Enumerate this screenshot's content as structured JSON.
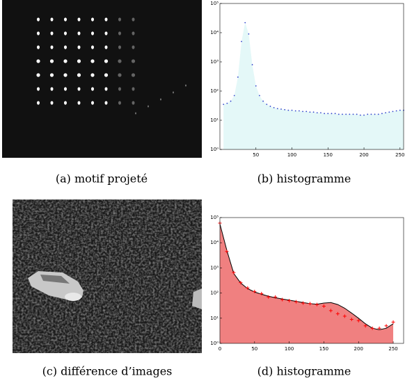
{
  "captions": [
    "(a) motif projeté",
    "(b) histogramme",
    "(c) différence d’images",
    "(d) histogramme"
  ],
  "chart_data": [
    {
      "type": "scatter",
      "log_y": true,
      "x": [
        5,
        10,
        15,
        20,
        25,
        30,
        35,
        40,
        45,
        50,
        55,
        60,
        65,
        70,
        75,
        80,
        85,
        90,
        95,
        100,
        105,
        110,
        115,
        120,
        125,
        130,
        135,
        140,
        145,
        150,
        155,
        160,
        165,
        170,
        175,
        180,
        185,
        190,
        195,
        200,
        205,
        210,
        215,
        220,
        225,
        230,
        235,
        240,
        245,
        250,
        255
      ],
      "series": [
        {
          "color": "#3344cc",
          "fill_color": "#e4f8f8",
          "marker": "dot",
          "values": [
            35,
            38,
            45,
            70,
            300,
            5000,
            22000,
            9000,
            800,
            150,
            70,
            45,
            35,
            30,
            27,
            25,
            24,
            23,
            22,
            22,
            21,
            21,
            20,
            20,
            19,
            19,
            18,
            18,
            17,
            17,
            17,
            17,
            16,
            16,
            16,
            16,
            16,
            16,
            15,
            15,
            16,
            16,
            16,
            16,
            17,
            18,
            19,
            20,
            21,
            22,
            22
          ]
        }
      ],
      "xlim": [
        0,
        255
      ],
      "xticks": [
        50,
        100,
        150,
        200,
        250
      ],
      "ylim": [
        1,
        100000
      ],
      "yticks": [
        {
          "value": 1,
          "label": "10⁰"
        },
        {
          "value": 10,
          "label": "10¹"
        },
        {
          "value": 100,
          "label": "10²"
        },
        {
          "value": 1000,
          "label": "10³"
        },
        {
          "value": 10000,
          "label": "10⁴"
        },
        {
          "value": 100000,
          "label": "10⁵"
        }
      ]
    },
    {
      "type": "scatter",
      "log_y": true,
      "x": [
        0,
        10,
        20,
        30,
        40,
        50,
        60,
        70,
        80,
        90,
        100,
        110,
        120,
        130,
        140,
        150,
        160,
        170,
        180,
        190,
        200,
        210,
        220,
        230,
        240,
        250
      ],
      "series": [
        {
          "color": "#000000",
          "fill_color": "#f08080",
          "marker": "line",
          "values": [
            56000,
            5000,
            600,
            250,
            150,
            110,
            90,
            75,
            65,
            58,
            52,
            47,
            42,
            38,
            36,
            40,
            42,
            35,
            25,
            16,
            10,
            6,
            4,
            3.5,
            4,
            6
          ]
        },
        {
          "color": "#ff0000",
          "marker": "plus",
          "values": [
            60000,
            4500,
            650,
            260,
            160,
            115,
            95,
            70,
            70,
            55,
            50,
            45,
            40,
            38,
            35,
            30,
            20,
            15,
            12,
            9,
            8,
            5,
            4,
            4,
            5,
            7
          ]
        }
      ],
      "xlim": [
        0,
        265
      ],
      "xticks": [
        0,
        50,
        100,
        150,
        200,
        250
      ],
      "ylim": [
        1,
        100000
      ],
      "yticks": [
        {
          "value": 1,
          "label": "10⁰"
        },
        {
          "value": 10,
          "label": "10¹"
        },
        {
          "value": 100,
          "label": "10²"
        },
        {
          "value": 1000,
          "label": "10³"
        },
        {
          "value": 10000,
          "label": "10⁴"
        },
        {
          "value": 100000,
          "label": "10⁵"
        }
      ]
    }
  ]
}
